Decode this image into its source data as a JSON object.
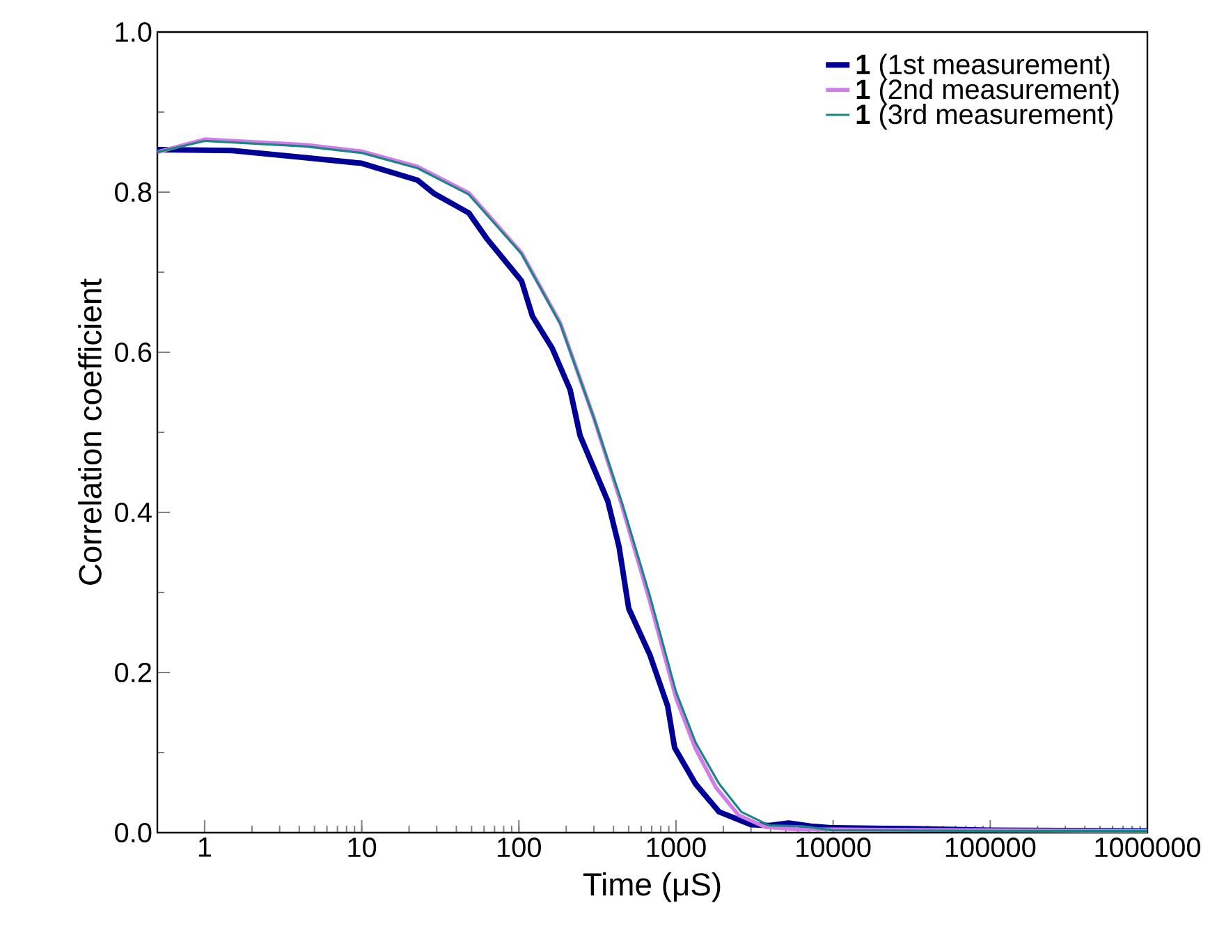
{
  "chart_data": {
    "type": "line",
    "xlabel": "Time (μS)",
    "ylabel": "Correlation coefficient",
    "log": "x",
    "xlim": [
      0.5,
      1000000
    ],
    "xticks": [
      1,
      10,
      100,
      1000,
      10000,
      100000,
      1000000
    ],
    "ylim": [
      0,
      1.0
    ],
    "yticks": [
      {
        "value": 0,
        "label": "0.0"
      },
      0.2,
      0.4,
      0.6,
      0.8,
      {
        "value": 1,
        "label": "1.0"
      }
    ],
    "grid": false,
    "legend": "top right",
    "marker": "none",
    "line_style": "solid",
    "series": [
      {
        "name": "**1** (1st measurement)",
        "color": "#000096",
        "x": [
          0.5,
          1.5,
          4.4,
          10,
          22.6,
          29,
          48,
          63,
          104,
          122,
          163,
          212,
          245,
          368,
          434,
          500,
          679,
          885,
          980,
          1330,
          1880,
          3000,
          3920,
          5210,
          7220,
          10000,
          30000,
          100000,
          1000000
        ],
        "values": [
          0.853,
          0.852,
          0.843,
          0.836,
          0.815,
          0.798,
          0.774,
          0.741,
          0.689,
          0.645,
          0.605,
          0.553,
          0.496,
          0.414,
          0.357,
          0.28,
          0.223,
          0.158,
          0.106,
          0.061,
          0.026,
          0.01,
          0.009,
          0.012,
          0.008,
          0.006,
          0.005,
          0.003,
          0.002
        ]
      },
      {
        "name": "**1** (2nd measurement)",
        "color": "#d17ce8",
        "x": [
          0.5,
          1,
          4.4,
          10,
          22.6,
          48,
          104,
          184,
          300,
          450,
          679,
          1000,
          1330,
          1800,
          2500,
          3700,
          6000,
          10000,
          100000,
          1000000
        ],
        "values": [
          0.85,
          0.866,
          0.859,
          0.851,
          0.832,
          0.799,
          0.724,
          0.636,
          0.518,
          0.41,
          0.29,
          0.168,
          0.105,
          0.056,
          0.022,
          0.007,
          0.004,
          0.004,
          0.003,
          0.002
        ]
      },
      {
        "name": "**1** (3rd measurement)",
        "color": "#1a8585",
        "x": [
          0.5,
          1,
          4.4,
          10,
          22.6,
          48,
          104,
          184,
          300,
          450,
          679,
          1000,
          1330,
          1880,
          2600,
          3920,
          6400,
          10000,
          100000,
          1000000
        ],
        "values": [
          0.85,
          0.864,
          0.857,
          0.849,
          0.83,
          0.797,
          0.723,
          0.635,
          0.518,
          0.414,
          0.297,
          0.176,
          0.113,
          0.061,
          0.026,
          0.009,
          0.008,
          0.003,
          0.002,
          0.002
        ]
      }
    ]
  }
}
